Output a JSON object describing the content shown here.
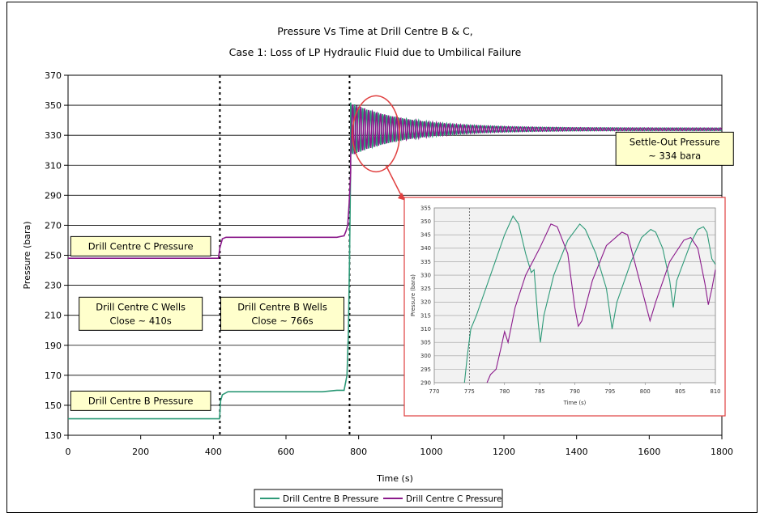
{
  "chart_data": [
    {
      "type": "line",
      "title": "Pressure Vs Time at Drill Centre B & C,",
      "subtitle": "Case 1: Loss of LP Hydraulic Fluid due to Umbilical Failure",
      "xlabel": "Time (s)",
      "ylabel": "Pressure (bara)",
      "xlim": [
        0,
        1800
      ],
      "ylim": [
        130,
        370
      ],
      "xticks": [
        "0",
        "200",
        "400",
        "600",
        "800",
        "1000",
        "1200",
        "1400",
        "1600",
        "1800"
      ],
      "yticks": [
        "130",
        "150",
        "170",
        "190",
        "210",
        "230",
        "250",
        "270",
        "290",
        "310",
        "330",
        "350",
        "370"
      ],
      "grid": "horizontal",
      "legend": "bottom-center",
      "vlines": [
        418,
        775
      ],
      "series": [
        {
          "name": "Drill Centre B Pressure",
          "color": "#2e9a78",
          "points": [
            [
              0,
              141
            ],
            [
              417,
              141
            ],
            [
              420,
              153
            ],
            [
              425,
              157
            ],
            [
              440,
              159
            ],
            [
              600,
              159
            ],
            [
              700,
              159
            ],
            [
              740,
              160
            ],
            [
              760,
              160
            ],
            [
              768,
              170
            ],
            [
              772,
              200
            ],
            [
              775,
              250
            ],
            [
              778,
              310
            ]
          ]
        },
        {
          "name": "Drill Centre C Pressure",
          "color": "#8b1a8b",
          "points": [
            [
              0,
              248
            ],
            [
              414,
              248
            ],
            [
              418,
              255
            ],
            [
              425,
              261
            ],
            [
              435,
              262
            ],
            [
              600,
              262
            ],
            [
              740,
              262
            ],
            [
              760,
              263
            ],
            [
              765,
              266
            ],
            [
              770,
              270
            ],
            [
              774,
              285
            ],
            [
              778,
              305
            ]
          ]
        }
      ],
      "oscillation": {
        "center": 334,
        "start": 778,
        "end": 1800,
        "initial_amplitude": 17,
        "period": 11
      },
      "annotations": [
        {
          "lines": [
            "Drill Centre C Pressure"
          ],
          "x": 200,
          "y": 256
        },
        {
          "lines": [
            "Drill Centre C Wells",
            "Close ~ 410s"
          ],
          "x": 200,
          "y": 211
        },
        {
          "lines": [
            "Drill Centre B Wells",
            "Close ~ 766s"
          ],
          "x": 590,
          "y": 211
        },
        {
          "lines": [
            "Drill Centre B Pressure"
          ],
          "x": 200,
          "y": 153
        },
        {
          "lines": [
            "Settle-Out Pressure",
            "~ 334 bara"
          ],
          "x": 1670,
          "y": 321
        }
      ],
      "legend_entries": [
        "Drill Centre B Pressure",
        "Drill Centre C Pressure"
      ]
    },
    {
      "type": "line",
      "role": "inset",
      "xlabel": "Time (s)",
      "ylabel": "Pressure (bara)",
      "xlim": [
        770,
        810
      ],
      "ylim": [
        290,
        355
      ],
      "xticks": [
        "770",
        "775",
        "780",
        "785",
        "790",
        "795",
        "800",
        "805",
        "810"
      ],
      "yticks": [
        "290",
        "295",
        "300",
        "305",
        "310",
        "315",
        "320",
        "325",
        "330",
        "335",
        "340",
        "345",
        "350",
        "355"
      ],
      "vline": 775,
      "series": [
        {
          "name": "Drill Centre B Pressure",
          "color": "#2e9a78",
          "points": [
            [
              774.3,
              290
            ],
            [
              774.7,
              300
            ],
            [
              775.2,
              310
            ],
            [
              776,
              315
            ],
            [
              778,
              330
            ],
            [
              780,
              345
            ],
            [
              781.2,
              352
            ],
            [
              782,
              349
            ],
            [
              783,
              338
            ],
            [
              783.8,
              331
            ],
            [
              784.2,
              332
            ],
            [
              784.8,
              312
            ],
            [
              785.1,
              305
            ],
            [
              785.6,
              315
            ],
            [
              787,
              330
            ],
            [
              789,
              343
            ],
            [
              790.7,
              349
            ],
            [
              791.5,
              347
            ],
            [
              793,
              338
            ],
            [
              794.5,
              325
            ],
            [
              795.3,
              310
            ],
            [
              796,
              320
            ],
            [
              798,
              335
            ],
            [
              799.5,
              344
            ],
            [
              800.8,
              347
            ],
            [
              801.5,
              346
            ],
            [
              802.5,
              340
            ],
            [
              803.5,
              328
            ],
            [
              804,
              318
            ],
            [
              804.5,
              328
            ],
            [
              806.5,
              342
            ],
            [
              807.5,
              347
            ],
            [
              808.3,
              348
            ],
            [
              808.8,
              346
            ],
            [
              809.5,
              336
            ],
            [
              810,
              334
            ]
          ]
        },
        {
          "name": "Drill Centre C Pressure",
          "color": "#8b1a8b",
          "points": [
            [
              777.5,
              290
            ],
            [
              778,
              293
            ],
            [
              778.8,
              295
            ],
            [
              779.5,
              303
            ],
            [
              780,
              309
            ],
            [
              780.5,
              305
            ],
            [
              781.5,
              318
            ],
            [
              783,
              330
            ],
            [
              785,
              340
            ],
            [
              786.6,
              349
            ],
            [
              787.5,
              348
            ],
            [
              789,
              338
            ],
            [
              790,
              318
            ],
            [
              790.5,
              311
            ],
            [
              791,
              313
            ],
            [
              792.5,
              328
            ],
            [
              794.5,
              341
            ],
            [
              796.7,
              346
            ],
            [
              797.5,
              345
            ],
            [
              799,
              330
            ],
            [
              800,
              320
            ],
            [
              800.7,
              313
            ],
            [
              801.5,
              320
            ],
            [
              803.5,
              335
            ],
            [
              805.5,
              343
            ],
            [
              806.5,
              344
            ],
            [
              807.5,
              340
            ],
            [
              808.5,
              327
            ],
            [
              809,
              319
            ],
            [
              809.5,
              325
            ],
            [
              810,
              332
            ]
          ]
        }
      ]
    }
  ]
}
